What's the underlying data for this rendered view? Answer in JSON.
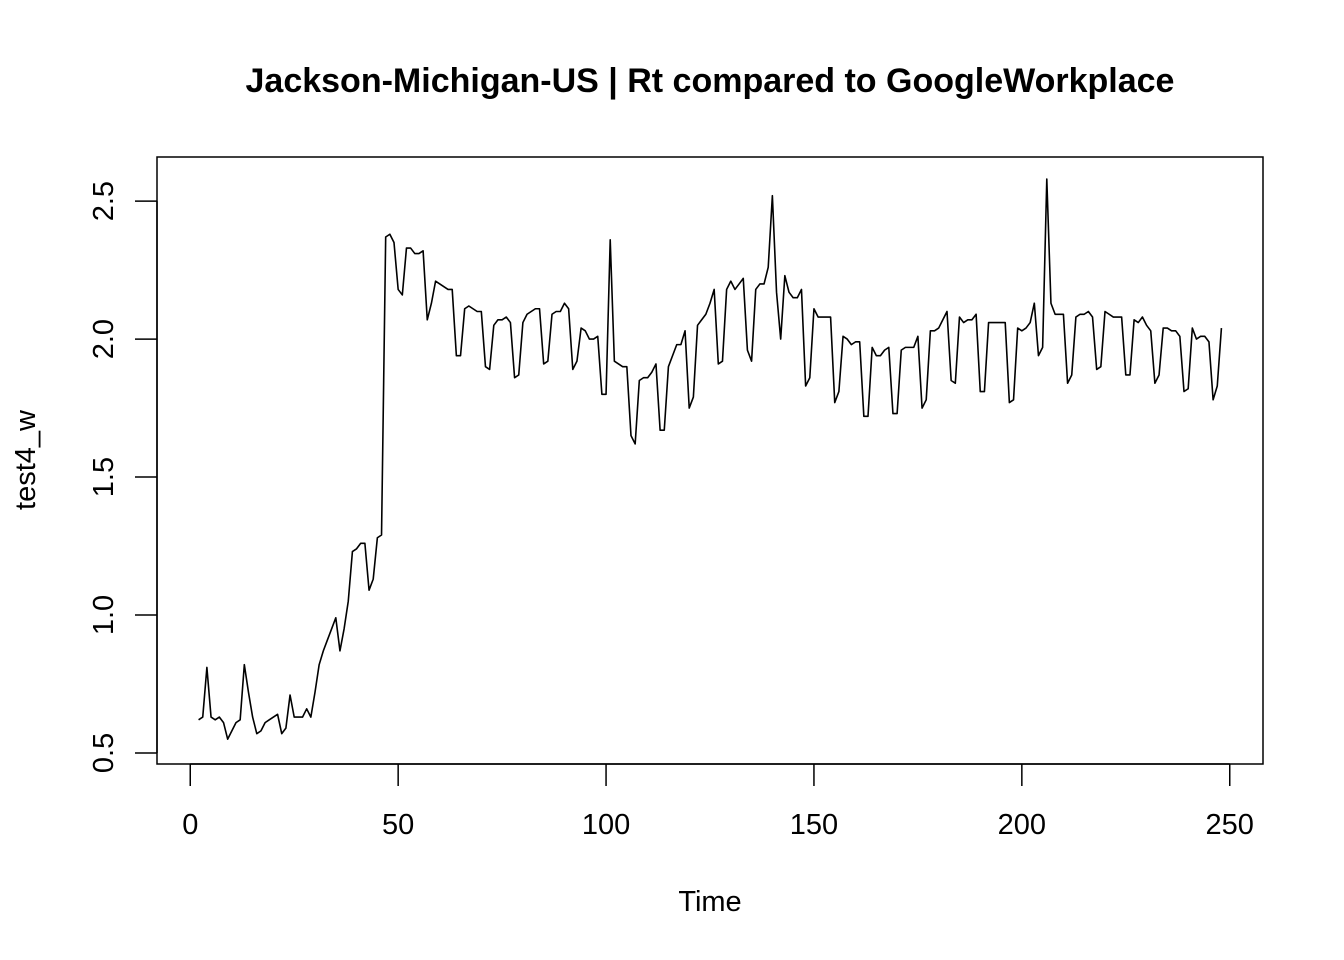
{
  "chart_data": {
    "type": "line",
    "title": "Jackson-Michigan-US | Rt compared to GoogleWorkplace",
    "xlabel": "Time",
    "ylabel": "test4_w",
    "xlim": [
      -8,
      258
    ],
    "ylim": [
      0.46,
      2.66
    ],
    "x_ticks": [
      0,
      50,
      100,
      150,
      200,
      250
    ],
    "x_tick_labels": [
      "0",
      "50",
      "100",
      "150",
      "200",
      "250"
    ],
    "y_ticks": [
      0.5,
      1.0,
      1.5,
      2.0,
      2.5
    ],
    "y_tick_labels": [
      "0.5",
      "1.0",
      "1.5",
      "2.0",
      "2.5"
    ],
    "grid": false,
    "legend": "none",
    "line_color": "#000000",
    "series": [
      {
        "x_start": 2,
        "values": [
          0.62,
          0.63,
          0.81,
          0.63,
          0.62,
          0.63,
          0.61,
          0.55,
          0.58,
          0.61,
          0.62,
          0.82,
          0.72,
          0.63,
          0.57,
          0.58,
          0.61,
          0.62,
          0.63,
          0.64,
          0.57,
          0.59,
          0.71,
          0.63,
          0.63,
          0.63,
          0.66,
          0.63,
          0.72,
          0.82,
          0.87,
          0.91,
          0.95,
          0.99,
          0.87,
          0.95,
          1.05,
          1.23,
          1.24,
          1.26,
          1.26,
          1.09,
          1.13,
          1.28,
          1.29,
          2.37,
          2.38,
          2.35,
          2.18,
          2.16,
          2.33,
          2.33,
          2.31,
          2.31,
          2.32,
          2.07,
          2.13,
          2.21,
          2.2,
          2.19,
          2.18,
          2.18,
          1.94,
          1.94,
          2.11,
          2.12,
          2.11,
          2.1,
          2.1,
          1.9,
          1.89,
          2.05,
          2.07,
          2.07,
          2.08,
          2.06,
          1.86,
          1.87,
          2.06,
          2.09,
          2.1,
          2.11,
          2.11,
          1.91,
          1.92,
          2.09,
          2.1,
          2.1,
          2.13,
          2.11,
          1.89,
          1.92,
          2.04,
          2.03,
          2.0,
          2.0,
          2.01,
          1.8,
          1.8,
          2.36,
          1.92,
          1.91,
          1.9,
          1.9,
          1.65,
          1.62,
          1.85,
          1.86,
          1.86,
          1.88,
          1.91,
          1.67,
          1.67,
          1.9,
          1.94,
          1.98,
          1.98,
          2.03,
          1.75,
          1.79,
          2.05,
          2.07,
          2.09,
          2.13,
          2.18,
          1.91,
          1.92,
          2.18,
          2.21,
          2.18,
          2.2,
          2.22,
          1.96,
          1.92,
          2.18,
          2.2,
          2.2,
          2.26,
          2.52,
          2.17,
          2.0,
          2.23,
          2.17,
          2.15,
          2.15,
          2.18,
          1.83,
          1.86,
          2.11,
          2.08,
          2.08,
          2.08,
          2.08,
          1.77,
          1.81,
          2.01,
          2.0,
          1.98,
          1.99,
          1.99,
          1.72,
          1.72,
          1.97,
          1.94,
          1.94,
          1.96,
          1.97,
          1.73,
          1.73,
          1.96,
          1.97,
          1.97,
          1.97,
          2.01,
          1.75,
          1.78,
          2.03,
          2.03,
          2.04,
          2.07,
          2.1,
          1.85,
          1.84,
          2.08,
          2.06,
          2.07,
          2.07,
          2.09,
          1.81,
          1.81,
          2.06,
          2.06,
          2.06,
          2.06,
          2.06,
          1.77,
          1.78,
          2.04,
          2.03,
          2.04,
          2.06,
          2.13,
          1.94,
          1.97,
          2.58,
          2.13,
          2.09,
          2.09,
          2.09,
          1.84,
          1.87,
          2.08,
          2.09,
          2.09,
          2.1,
          2.08,
          1.89,
          1.9,
          2.1,
          2.09,
          2.08,
          2.08,
          2.08,
          1.87,
          1.87,
          2.07,
          2.06,
          2.08,
          2.05,
          2.03,
          1.84,
          1.87,
          2.04,
          2.04,
          2.03,
          2.03,
          2.01,
          1.81,
          1.82,
          2.04,
          2.0,
          2.01,
          2.01,
          1.99,
          1.78,
          1.83,
          2.04
        ]
      }
    ]
  }
}
